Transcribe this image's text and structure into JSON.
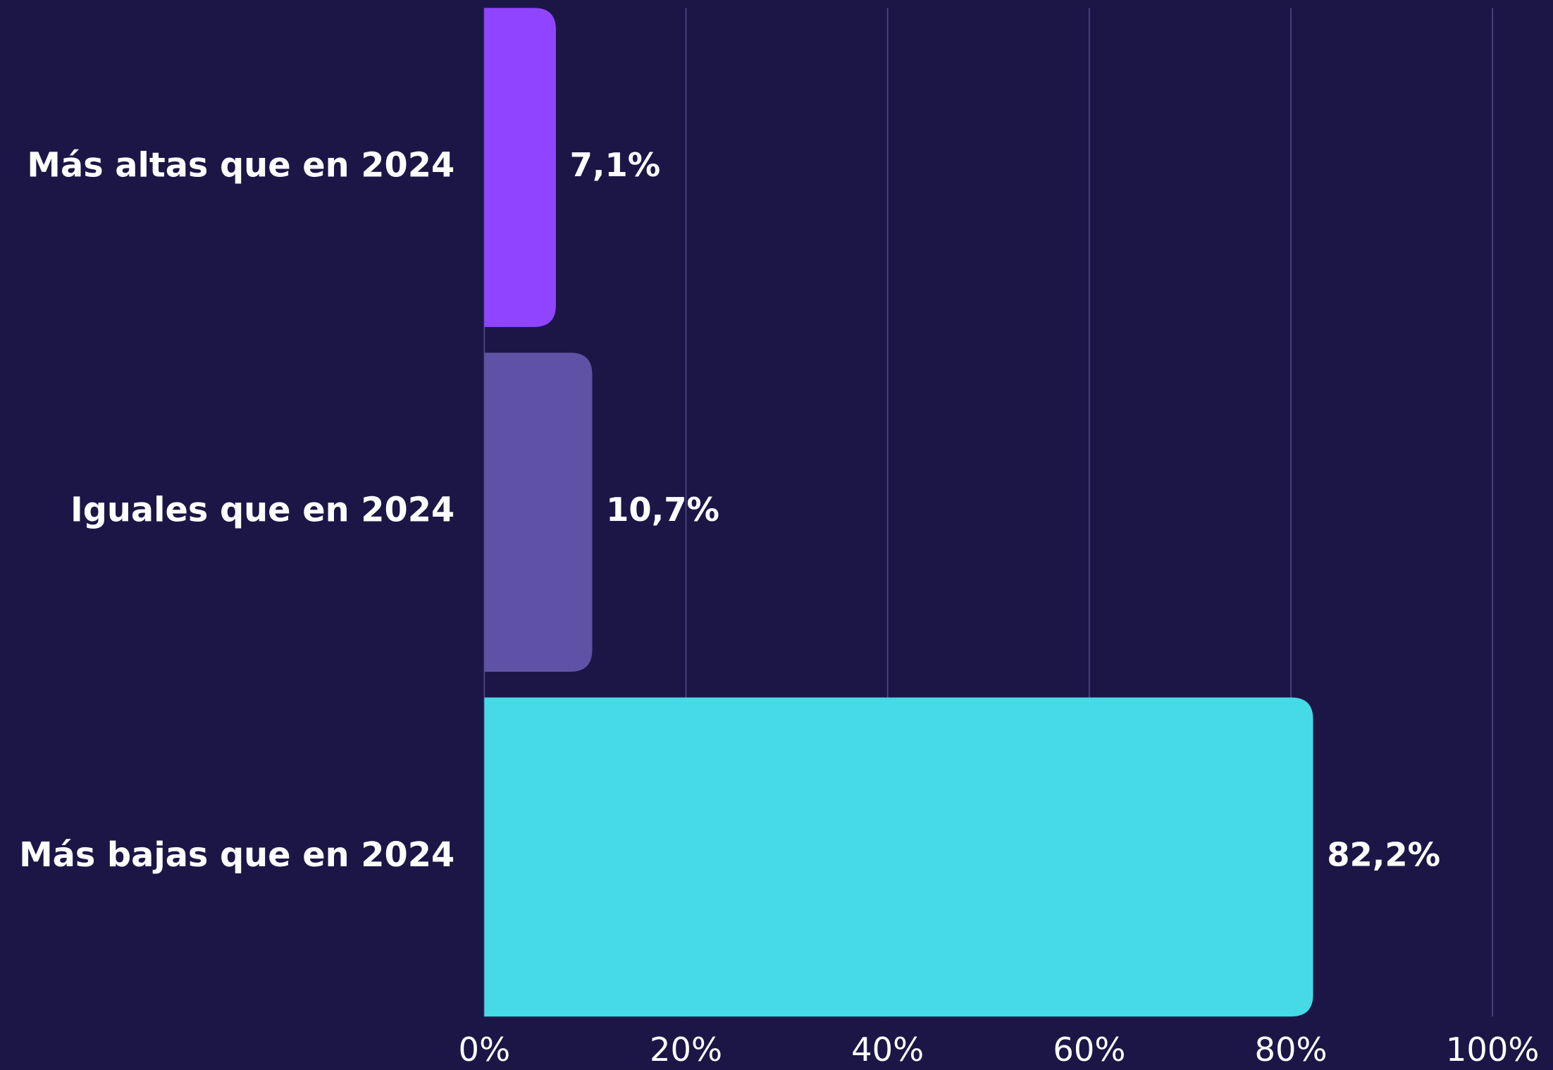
{
  "chart_data": {
    "type": "barh",
    "categories": [
      "Más altas que en 2024",
      "Iguales que en 2024",
      "Más bajas que en 2024"
    ],
    "values": [
      7.1,
      10.7,
      82.2
    ],
    "value_labels": [
      "7,1%",
      "10,7%",
      "82,2%"
    ],
    "colors": [
      "#8f45ff",
      "#5f52a6",
      "#46d9e6"
    ],
    "xlim": [
      0,
      100
    ],
    "xticks": [
      {
        "value": 0,
        "label": "0%"
      },
      {
        "value": 20,
        "label": "20%"
      },
      {
        "value": 40,
        "label": "40%"
      },
      {
        "value": 60,
        "label": "60%"
      },
      {
        "value": 80,
        "label": "80%"
      },
      {
        "value": 100,
        "label": "100%"
      }
    ],
    "grid": true
  }
}
